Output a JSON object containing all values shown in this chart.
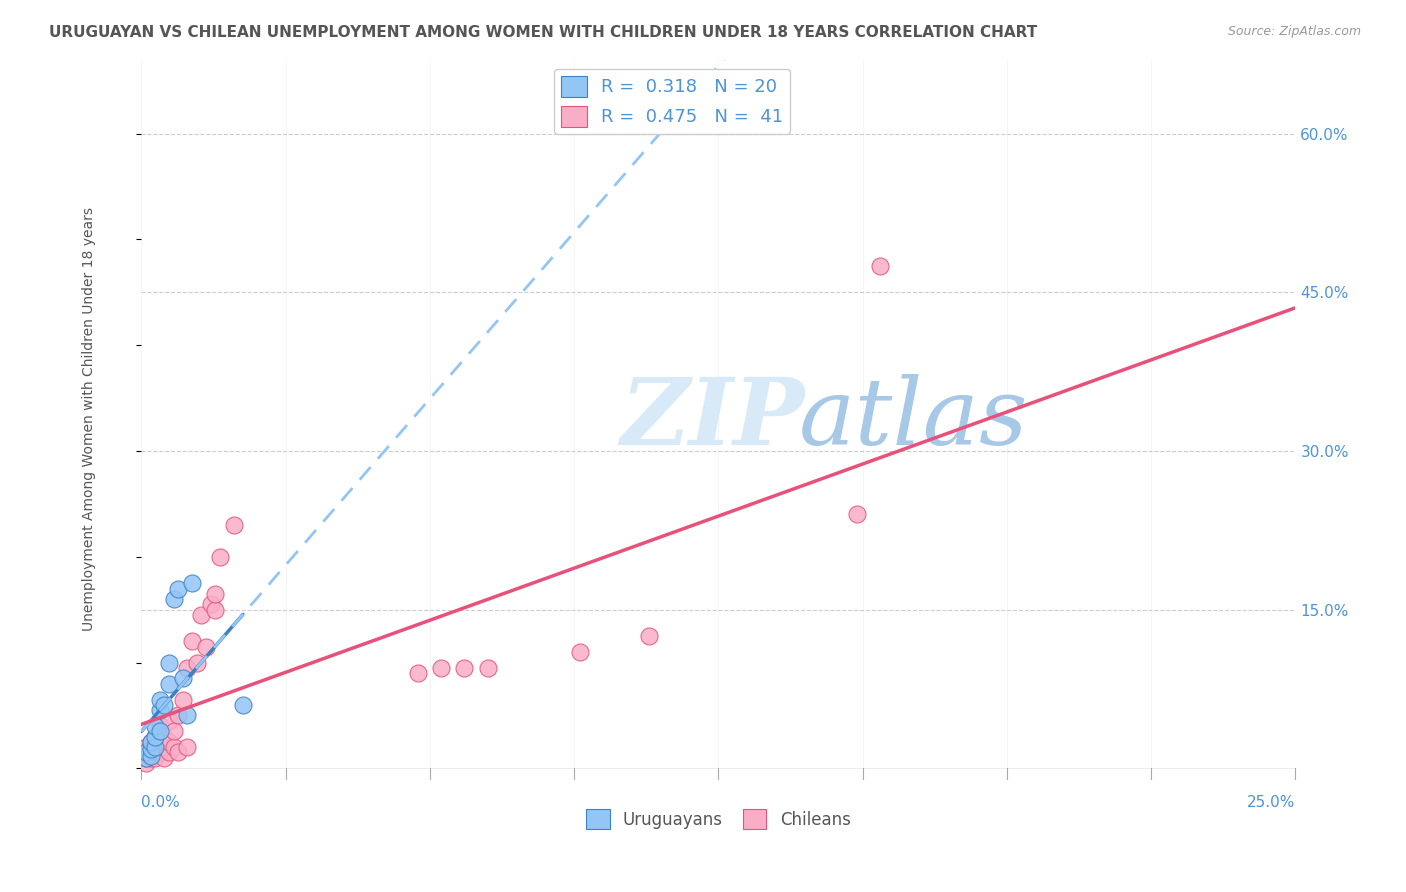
{
  "title": "URUGUAYAN VS CHILEAN UNEMPLOYMENT AMONG WOMEN WITH CHILDREN UNDER 18 YEARS CORRELATION CHART",
  "source": "Source: ZipAtlas.com",
  "ylabel": "Unemployment Among Women with Children Under 18 years",
  "ytick_labels": [
    "15.0%",
    "30.0%",
    "45.0%",
    "60.0%"
  ],
  "ytick_values": [
    0.15,
    0.3,
    0.45,
    0.6
  ],
  "xlim": [
    0.0,
    0.25
  ],
  "ylim": [
    -0.01,
    0.67
  ],
  "legend_label_uru": "R =  0.318   N = 20",
  "legend_label_chi": "R =  0.475   N =  41",
  "uruguayan_x": [
    0.001,
    0.001,
    0.002,
    0.002,
    0.002,
    0.003,
    0.003,
    0.003,
    0.004,
    0.004,
    0.004,
    0.005,
    0.006,
    0.006,
    0.007,
    0.008,
    0.009,
    0.01,
    0.011,
    0.022
  ],
  "uruguayan_y": [
    0.01,
    0.015,
    0.012,
    0.018,
    0.025,
    0.02,
    0.03,
    0.04,
    0.035,
    0.055,
    0.065,
    0.06,
    0.08,
    0.1,
    0.16,
    0.17,
    0.085,
    0.05,
    0.175,
    0.06
  ],
  "chilean_x": [
    0.001,
    0.001,
    0.001,
    0.002,
    0.002,
    0.002,
    0.003,
    0.003,
    0.003,
    0.004,
    0.004,
    0.005,
    0.005,
    0.005,
    0.006,
    0.006,
    0.006,
    0.007,
    0.007,
    0.008,
    0.008,
    0.009,
    0.01,
    0.01,
    0.011,
    0.012,
    0.013,
    0.014,
    0.015,
    0.016,
    0.016,
    0.017,
    0.02,
    0.06,
    0.065,
    0.07,
    0.075,
    0.095,
    0.11,
    0.155,
    0.16
  ],
  "chilean_y": [
    0.005,
    0.01,
    0.02,
    0.01,
    0.015,
    0.025,
    0.01,
    0.015,
    0.03,
    0.015,
    0.04,
    0.01,
    0.02,
    0.03,
    0.015,
    0.025,
    0.045,
    0.02,
    0.035,
    0.015,
    0.05,
    0.065,
    0.02,
    0.095,
    0.12,
    0.1,
    0.145,
    0.115,
    0.155,
    0.15,
    0.165,
    0.2,
    0.23,
    0.09,
    0.095,
    0.095,
    0.095,
    0.11,
    0.125,
    0.24,
    0.475
  ],
  "uruguayan_color": "#93c5f5",
  "chilean_color": "#f9aec8",
  "trend_uru_solid_color": "#3b82c4",
  "trend_uru_dash_color": "#93c5f5",
  "trend_chi_color": "#e8527a",
  "background_color": "#ffffff",
  "grid_color": "#c8c8c8",
  "title_color": "#555555",
  "right_axis_color": "#4d94d8",
  "watermark_zip_color": "#d8eaf8",
  "watermark_atlas_color": "#a8c8e8"
}
